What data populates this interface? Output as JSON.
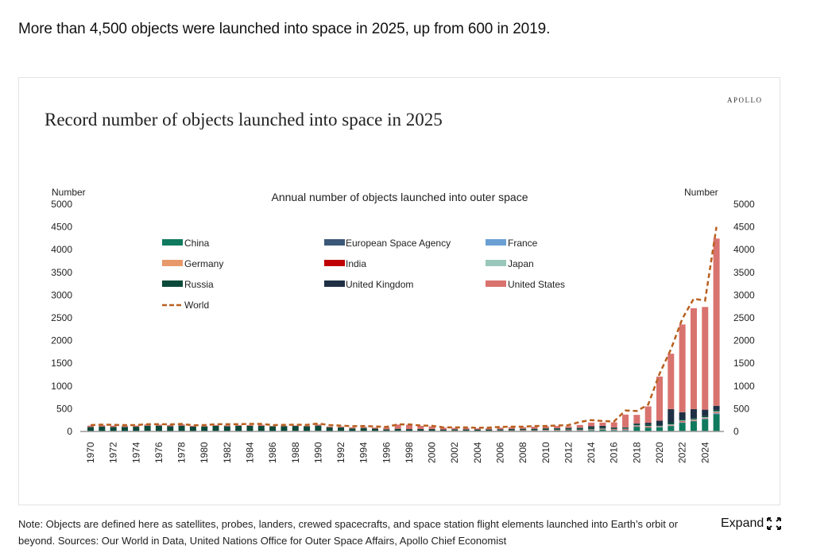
{
  "headline": "More than 4,500 objects were launched into space in 2025, up from 600 in 2019.",
  "brand": "APOLLO",
  "note": "Note: Objects are defined here as satellites, probes, landers, crewed spacecrafts, and space station flight elements launched into Earth’s orbit or beyond. Sources: Our World in Data, United Nations Office for Outer Space Affairs, Apollo Chief Economist",
  "expand_label": "Expand",
  "expand_icon": "expand-arrows-icon",
  "chart_data": {
    "type": "bar",
    "stacked": true,
    "title": "Record number of objects launched into space in 2025",
    "subtitle": "Annual number of objects launched into outer space",
    "ylabel_left": "Number",
    "ylabel_right": "Number",
    "ylim": [
      0,
      5000
    ],
    "yticks": [
      0,
      500,
      1000,
      1500,
      2000,
      2500,
      3000,
      3500,
      4000,
      4500,
      5000
    ],
    "xticks": [
      "1970",
      "1972",
      "1974",
      "1976",
      "1978",
      "1980",
      "1982",
      "1984",
      "1986",
      "1988",
      "1990",
      "1992",
      "1994",
      "1996",
      "1998",
      "2000",
      "2002",
      "2004",
      "2006",
      "2008",
      "2010",
      "2012",
      "2014",
      "2016",
      "2018",
      "2020",
      "2022",
      "2024"
    ],
    "grid": false,
    "legend_placement": "top-left",
    "x": [
      1970,
      1971,
      1972,
      1973,
      1974,
      1975,
      1976,
      1977,
      1978,
      1979,
      1980,
      1981,
      1982,
      1983,
      1984,
      1985,
      1986,
      1987,
      1988,
      1989,
      1990,
      1991,
      1992,
      1993,
      1994,
      1995,
      1996,
      1997,
      1998,
      1999,
      2000,
      2001,
      2002,
      2003,
      2004,
      2005,
      2006,
      2007,
      2008,
      2009,
      2010,
      2011,
      2012,
      2013,
      2014,
      2015,
      2016,
      2017,
      2018,
      2019,
      2020,
      2021,
      2022,
      2023,
      2024,
      2025
    ],
    "series": [
      {
        "name": "China",
        "color": "#0f7a5e",
        "values": [
          1,
          1,
          0,
          0,
          0,
          3,
          2,
          0,
          1,
          0,
          0,
          3,
          1,
          2,
          3,
          2,
          2,
          3,
          4,
          1,
          6,
          1,
          3,
          1,
          4,
          2,
          3,
          6,
          6,
          4,
          5,
          1,
          5,
          7,
          8,
          5,
          6,
          10,
          11,
          6,
          15,
          19,
          20,
          15,
          25,
          40,
          25,
          20,
          100,
          80,
          90,
          115,
          185,
          220,
          270,
          380
        ]
      },
      {
        "name": "European Space Agency",
        "color": "#3b5878",
        "values": [
          0,
          0,
          0,
          0,
          0,
          2,
          1,
          3,
          2,
          1,
          2,
          3,
          2,
          3,
          2,
          2,
          1,
          3,
          2,
          3,
          2,
          3,
          3,
          2,
          2,
          4,
          3,
          4,
          3,
          5,
          5,
          4,
          4,
          3,
          2,
          3,
          4,
          3,
          5,
          4,
          3,
          3,
          4,
          5,
          5,
          4,
          5,
          8,
          6,
          5,
          4,
          6,
          8,
          7,
          6,
          8
        ]
      },
      {
        "name": "France",
        "color": "#6a9fd4",
        "values": [
          1,
          1,
          0,
          0,
          1,
          2,
          0,
          0,
          0,
          1,
          0,
          1,
          0,
          0,
          0,
          1,
          1,
          0,
          1,
          1,
          2,
          0,
          1,
          1,
          1,
          1,
          1,
          1,
          2,
          1,
          1,
          2,
          1,
          1,
          2,
          2,
          1,
          1,
          1,
          3,
          2,
          2,
          3,
          4,
          3,
          4,
          5,
          6,
          5,
          4,
          6,
          7,
          8,
          6,
          10,
          14
        ]
      },
      {
        "name": "Germany",
        "color": "#e8996a",
        "values": [
          0,
          1,
          1,
          0,
          2,
          2,
          1,
          0,
          0,
          0,
          0,
          0,
          0,
          0,
          0,
          0,
          0,
          0,
          0,
          0,
          2,
          0,
          1,
          0,
          1,
          2,
          1,
          1,
          2,
          3,
          2,
          4,
          3,
          2,
          1,
          2,
          3,
          4,
          3,
          2,
          3,
          2,
          4,
          5,
          5,
          4,
          3,
          5,
          6,
          8,
          6,
          9,
          12,
          10,
          8,
          12
        ]
      },
      {
        "name": "India",
        "color": "#c00000",
        "values": [
          0,
          0,
          0,
          0,
          0,
          1,
          0,
          0,
          0,
          1,
          1,
          1,
          1,
          1,
          0,
          0,
          0,
          0,
          1,
          0,
          0,
          0,
          1,
          0,
          1,
          0,
          1,
          0,
          0,
          2,
          1,
          2,
          2,
          2,
          1,
          1,
          1,
          2,
          5,
          3,
          6,
          5,
          4,
          3,
          4,
          6,
          8,
          10,
          8,
          12,
          4,
          5,
          12,
          8,
          6,
          10
        ]
      },
      {
        "name": "Japan",
        "color": "#99c8bb",
        "values": [
          1,
          2,
          1,
          0,
          1,
          2,
          1,
          2,
          3,
          2,
          2,
          2,
          2,
          3,
          3,
          2,
          3,
          3,
          2,
          3,
          4,
          2,
          2,
          3,
          2,
          2,
          3,
          4,
          2,
          1,
          1,
          3,
          5,
          3,
          2,
          4,
          6,
          4,
          5,
          7,
          6,
          6,
          5,
          6,
          8,
          7,
          9,
          12,
          10,
          12,
          8,
          14,
          18,
          16,
          14,
          20
        ]
      },
      {
        "name": "Russia",
        "color": "#0b4a3a",
        "values": [
          95,
          105,
          95,
          100,
          100,
          115,
          120,
          110,
          120,
          100,
          105,
          115,
          110,
          115,
          115,
          115,
          105,
          105,
          110,
          105,
          110,
          85,
          80,
          60,
          65,
          50,
          35,
          40,
          35,
          35,
          35,
          25,
          25,
          25,
          25,
          25,
          25,
          30,
          25,
          30,
          30,
          30,
          30,
          35,
          35,
          30,
          25,
          20,
          25,
          30,
          20,
          45,
          20,
          25,
          25,
          30
        ]
      },
      {
        "name": "United Kingdom",
        "color": "#1f3045",
        "values": [
          0,
          0,
          0,
          0,
          0,
          0,
          1,
          0,
          1,
          1,
          0,
          0,
          0,
          0,
          0,
          0,
          0,
          0,
          1,
          0,
          2,
          1,
          0,
          0,
          0,
          0,
          0,
          1,
          2,
          2,
          3,
          2,
          2,
          3,
          2,
          3,
          2,
          2,
          3,
          4,
          3,
          4,
          6,
          10,
          30,
          30,
          10,
          10,
          15,
          40,
          100,
          290,
          160,
          200,
          140,
          90
        ]
      },
      {
        "name": "United States",
        "color": "#d9736f",
        "values": [
          30,
          28,
          30,
          25,
          25,
          28,
          25,
          28,
          30,
          20,
          15,
          18,
          20,
          18,
          20,
          25,
          10,
          12,
          10,
          12,
          25,
          18,
          20,
          25,
          25,
          25,
          40,
          95,
          95,
          70,
          60,
          40,
          30,
          30,
          25,
          30,
          35,
          40,
          35,
          45,
          45,
          50,
          40,
          60,
          80,
          70,
          110,
          280,
          190,
          360,
          970,
          1220,
          1930,
          2220,
          2260,
          3680
        ]
      }
    ],
    "world": {
      "name": "World",
      "color": "#b8601f",
      "style": "dashed",
      "values": [
        140,
        150,
        145,
        140,
        140,
        160,
        160,
        155,
        165,
        135,
        140,
        160,
        160,
        160,
        165,
        165,
        140,
        145,
        150,
        145,
        175,
        140,
        130,
        115,
        120,
        110,
        100,
        155,
        155,
        130,
        125,
        90,
        90,
        90,
        80,
        85,
        100,
        105,
        105,
        120,
        120,
        130,
        140,
        210,
        250,
        230,
        220,
        460,
        450,
        590,
        1270,
        1810,
        2480,
        2920,
        2880,
        4500
      ]
    }
  }
}
